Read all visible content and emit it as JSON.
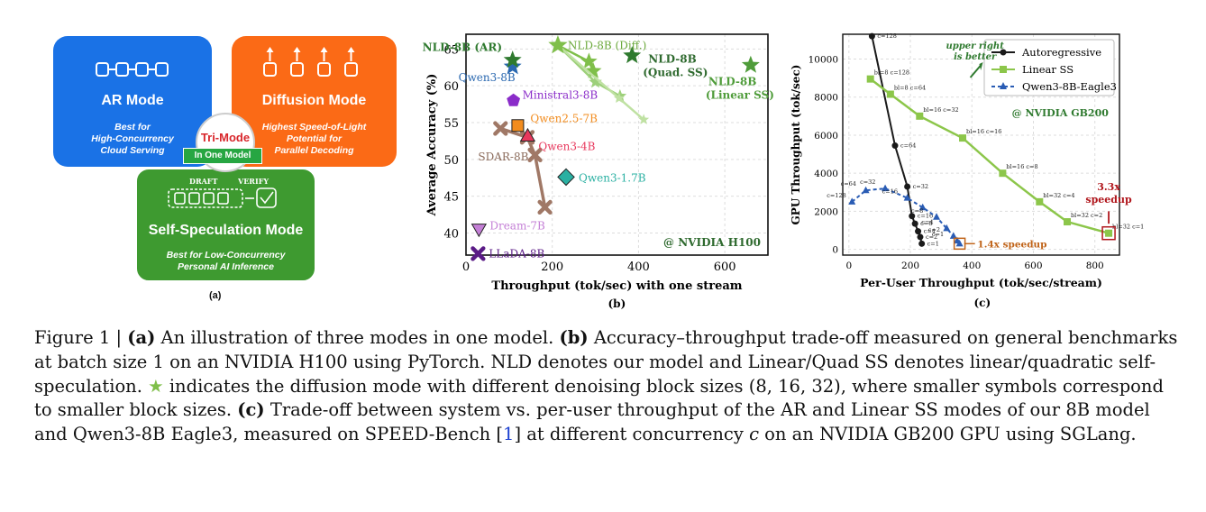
{
  "panel_a": {
    "ar": {
      "title": "AR Mode",
      "desc": [
        "Best for",
        "High-Concurrency",
        "Cloud Serving"
      ]
    },
    "diffusion": {
      "title": "Diffusion Mode",
      "desc": [
        "Highest Speed-of-Light",
        "Potential for",
        "Parallel Decoding"
      ]
    },
    "trimode": {
      "title": "Tri-Mode",
      "badge": "In One Model"
    },
    "ss": {
      "title": "Self-Speculation Mode",
      "draft": "DRAFT",
      "verify": "VERIFY",
      "desc": [
        "Best for Low-Concurrency",
        "Personal AI Inference"
      ]
    },
    "label": "(a)",
    "colors": {
      "ar": "#1a72e6",
      "diffusion": "#fb6a16",
      "ss": "#3e9a30",
      "trimode": "#d8262b"
    }
  },
  "chart_data": [
    {
      "type": "scatter",
      "panel_label": "(b)",
      "xlabel": "Throughput (tok/sec) with one stream",
      "ylabel": "Average Accuracy (%)",
      "xlim": [
        0,
        700
      ],
      "ylim": [
        37,
        67
      ],
      "xticks": [
        0,
        200,
        400,
        600
      ],
      "yticks": [
        40,
        45,
        50,
        55,
        60,
        65
      ],
      "grid": true,
      "annotation": "@ NVIDIA H100",
      "points": [
        {
          "label": "Qwen3-8B",
          "x": 108,
          "y": 62.6,
          "marker": "star",
          "color": "#2a68b0"
        },
        {
          "label": "Ministral3-8B",
          "x": 110,
          "y": 58.0,
          "marker": "pentagon",
          "color": "#8a2cc9"
        },
        {
          "label": "Qwen2.5-7B",
          "x": 120,
          "y": 54.6,
          "marker": "square",
          "color": "#f28c1e"
        },
        {
          "label": "Qwen3-4B",
          "x": 143,
          "y": 53.2,
          "marker": "triangle",
          "color": "#e8385d"
        },
        {
          "label": "Qwen3-1.7B",
          "x": 232,
          "y": 47.6,
          "marker": "diamond",
          "color": "#2ab0a2"
        },
        {
          "label": "Dream-7B",
          "x": 30,
          "y": 40.5,
          "marker": "triangle-down",
          "color": "#c47fd6"
        },
        {
          "label": "LLaDA-8B",
          "x": 28,
          "y": 37.2,
          "marker": "x",
          "color": "#5a1a86"
        },
        {
          "label": "NLD-8B (AR)",
          "x": 108,
          "y": 63.5,
          "marker": "star",
          "color": "#2f7a2f"
        },
        {
          "label": "NLD-8B (Quad. SS)",
          "x": 385,
          "y": 64.1,
          "marker": "star",
          "color": "#2f7a2f"
        },
        {
          "label": "NLD-8B (Linear SS)",
          "x": 660,
          "y": 62.8,
          "marker": "star",
          "color": "#4f9c3a"
        }
      ],
      "series": [
        {
          "name": "SDAR-8B",
          "color": "#a07866",
          "x": [
            80,
            142,
            160,
            183
          ],
          "y": [
            54.2,
            53.0,
            50.6,
            43.5
          ]
        },
        {
          "name": "NLD-8B (Diff.)",
          "color": "#7fbf4a",
          "x": [
            213,
            285,
            295
          ],
          "y": [
            65.5,
            63.3,
            62.0
          ]
        },
        {
          "color": "#9dd07a",
          "x": [
            213,
            300,
            357
          ],
          "y": [
            65.5,
            60.5,
            58.6
          ]
        },
        {
          "color": "#bfe1a2",
          "x": [
            213,
            355,
            412
          ],
          "y": [
            65.5,
            58.3,
            55.4
          ]
        }
      ],
      "extra_labels": {
        "diff_small": "★"
      }
    },
    {
      "type": "line",
      "panel_label": "(c)",
      "xlabel": "Per-User Throughput (tok/sec/stream)",
      "ylabel": "GPU Throughput (tok/sec)",
      "xlim": [
        -20,
        880
      ],
      "ylim": [
        -300,
        11300
      ],
      "xticks": [
        0,
        200,
        400,
        600,
        800
      ],
      "yticks": [
        0,
        2000,
        4000,
        6000,
        8000,
        10000
      ],
      "grid": true,
      "legend": {
        "placement": "top-right",
        "entries": [
          "Autoregressive",
          "Linear SS",
          "Qwen3-8B-Eagle3"
        ]
      },
      "annotations": {
        "upper_right": [
          "upper right",
          "is better"
        ],
        "gpu": "@ NVIDIA GB200",
        "speedup_big": [
          "3.3x",
          "speedup"
        ],
        "speedup_small": "1.4x speedup"
      },
      "series": [
        {
          "name": "Autoregressive",
          "color": "#1a1a1a",
          "marker": "circle",
          "x": [
            75,
            150,
            190,
            205,
            215,
            225,
            232,
            237
          ],
          "y": [
            11200,
            5450,
            3300,
            1750,
            1350,
            950,
            650,
            300
          ],
          "point_labels": [
            "c=128",
            "c=64",
            "c=32",
            "c=16",
            "c=8",
            "c=4",
            "c=2",
            "c=1"
          ]
        },
        {
          "name": "Linear SS",
          "color": "#8cc64a",
          "marker": "square",
          "x": [
            70,
            135,
            230,
            370,
            500,
            620,
            710,
            845
          ],
          "y": [
            8950,
            8150,
            7000,
            5850,
            4000,
            2500,
            1450,
            850
          ],
          "point_labels": [
            "bl=8 c=128",
            "bl=8 c=64",
            "bl=16 c=32",
            "bl=16 c=16",
            "bl=16 c=8",
            "bl=32 c=4",
            "bl=32 c=2",
            "bl=32 c=1"
          ]
        },
        {
          "name": "Qwen3-8B-Eagle3",
          "color": "#2a5cb4",
          "marker": "triangle",
          "x": [
            10,
            55,
            118,
            190,
            240,
            285,
            318,
            340,
            352,
            360
          ],
          "y": [
            2500,
            3100,
            3200,
            2700,
            2200,
            1700,
            1100,
            700,
            450,
            300
          ],
          "point_labels": [
            "c=128",
            "c=64",
            "c=32",
            "c=16",
            "",
            "c=8",
            "c=4",
            "c=2",
            "c=1",
            ""
          ]
        }
      ]
    }
  ],
  "caption": {
    "fig": "Figure 1 |",
    "a_label": "(a)",
    "a_text": " An illustration of three modes in one model. ",
    "b_label": "(b)",
    "b_text": " Accuracy–throughput trade-off measured on general benchmarks at batch size 1 on an NVIDIA H100 using PyTorch. NLD denotes our model and Linear/Quad SS denotes linear/quadratic self-speculation. ",
    "star": "★",
    "b_text2": " indicates the diffusion mode with different denoising block sizes (8, 16, 32), where smaller symbols correspond to smaller block sizes. ",
    "c_label": "(c)",
    "c_text": " Trade-off between system vs. per-user throughput of the AR and Linear SS modes of our 8B model and Qwen3-8B Eagle3, measured on SPEED-Bench [",
    "ref": "1",
    "c_text2": "] at different concurrency ",
    "c_var": "c",
    "c_text3": " on an NVIDIA GB200 GPU using SGLang."
  }
}
